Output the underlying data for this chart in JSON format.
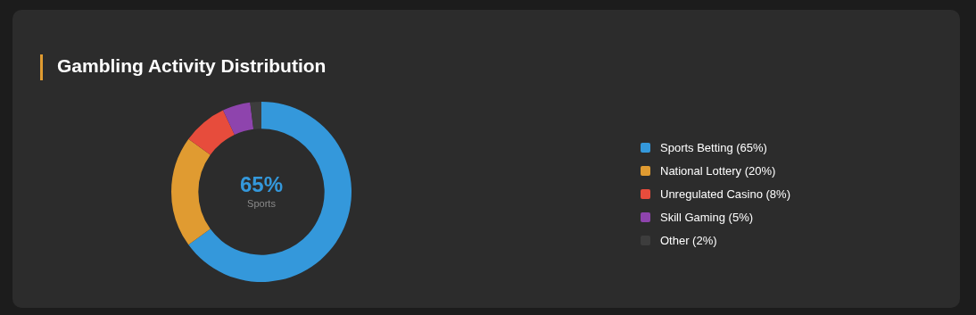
{
  "chart_data": {
    "type": "donut",
    "title": "Gambling Activity Distribution",
    "categories": [
      "Sports Betting (65%)",
      "National Lottery (20%)",
      "Unregulated Casino (8%)",
      "Skill Gaming (5%)",
      "Other (2%)"
    ],
    "values": [
      65,
      20,
      8,
      5,
      2
    ],
    "colors": [
      "#3498db",
      "#e09b31",
      "#e74c3c",
      "#8e44ad",
      "#3d3d3d"
    ],
    "annotations": [
      "65%",
      "Sports"
    ],
    "legend": "right"
  }
}
